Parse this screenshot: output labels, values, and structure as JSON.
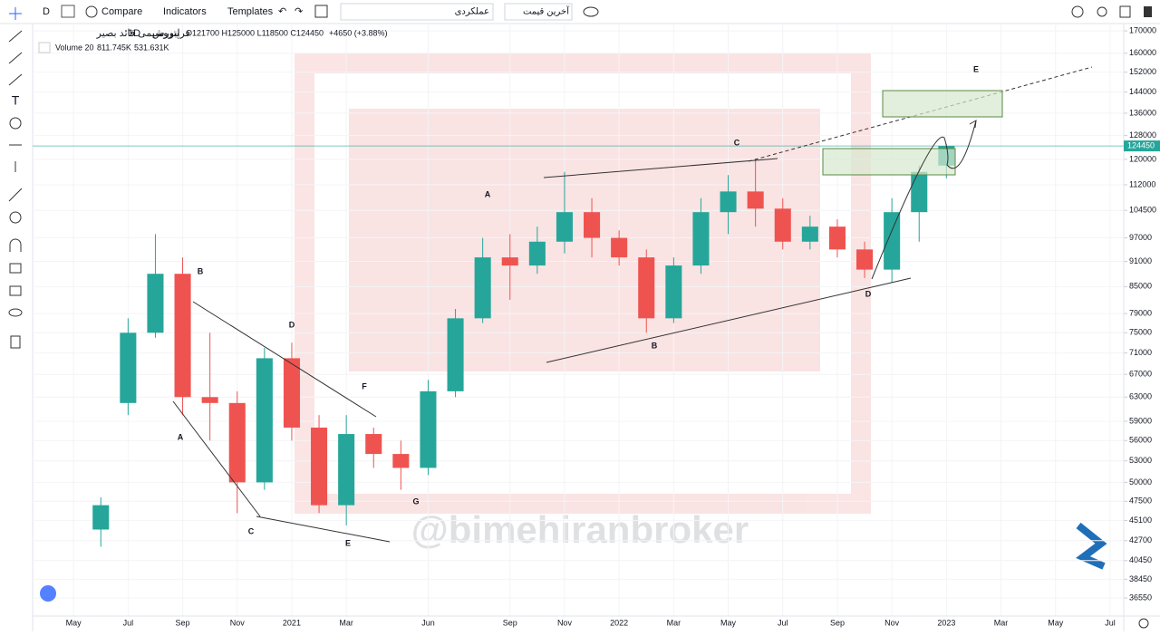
{
  "toolbar": {
    "interval": "D",
    "compare": "Compare",
    "indicators": "Indicators",
    "templates": "Templates",
    "search": "عملکردی",
    "price_type": "آخرین قیمت"
  },
  "legend": {
    "symbol": "پتروشیمی قائد بصیر",
    "interval": "1D",
    "exchange": "فرابورس",
    "ohlc": "O121700 H125000 L118500 C124450",
    "change": "+4650 (+3.88%)",
    "volume": "Volume 20",
    "volume_value": "811.745K",
    "volume_ma": "531.631K"
  },
  "watermark": "@bimehiranbroker",
  "chart_data": {
    "type": "candlestick",
    "log_scale": true,
    "up_color": "#26a69a",
    "down_color": "#ef5350",
    "categories": [
      null,
      "May",
      null,
      "Jul",
      null,
      "Sep",
      null,
      "Nov",
      null,
      "2021",
      null,
      "Mar",
      null,
      null,
      "Jun",
      null,
      null,
      "Sep",
      null,
      "Nov",
      null,
      "2022",
      null,
      "Mar",
      null,
      "May",
      null,
      "Jul",
      null,
      "Sep",
      null,
      "Nov",
      null,
      "2023",
      null,
      "Mar",
      null,
      "May",
      null,
      "Jul"
    ],
    "open": [
      null,
      null,
      44000,
      62000,
      75000,
      88000,
      63000,
      62000,
      50000,
      70000,
      58000,
      47000,
      57000,
      54000,
      52000,
      64000,
      78000,
      92000,
      90000,
      96000,
      104000,
      97000,
      92000,
      78000,
      90000,
      104000,
      110000,
      105000,
      96000,
      100000,
      94000,
      89000,
      104000,
      118000,
      null,
      null,
      null,
      null,
      null,
      null
    ],
    "high": [
      null,
      null,
      48000,
      78000,
      98000,
      92000,
      75000,
      64000,
      72000,
      73000,
      60000,
      60000,
      58000,
      56000,
      66000,
      80000,
      97000,
      98000,
      100000,
      116000,
      108000,
      99000,
      94000,
      92000,
      108000,
      115000,
      120000,
      108000,
      103000,
      102000,
      96000,
      108000,
      118000,
      125000,
      null,
      null,
      null,
      null,
      null,
      null
    ],
    "low": [
      null,
      null,
      42000,
      60000,
      74000,
      60000,
      56000,
      46000,
      49000,
      56000,
      46000,
      44500,
      52000,
      49000,
      51000,
      63000,
      77000,
      82000,
      88000,
      93000,
      92000,
      90000,
      75000,
      77000,
      88000,
      98000,
      100000,
      94000,
      94000,
      92000,
      87000,
      86000,
      96000,
      114000,
      null,
      null,
      null,
      null,
      null,
      null
    ],
    "close": [
      null,
      null,
      47000,
      75000,
      88000,
      63000,
      62000,
      50000,
      70000,
      58000,
      47000,
      57000,
      54000,
      52000,
      64000,
      78000,
      92000,
      90000,
      96000,
      104000,
      97000,
      92000,
      78000,
      90000,
      104000,
      110000,
      105000,
      96000,
      100000,
      94000,
      89000,
      104000,
      116000,
      124450,
      null,
      null,
      null,
      null,
      null,
      null
    ],
    "ylim": [
      34800,
      173400
    ],
    "yticks": [
      36550,
      38450,
      40450,
      42700,
      45100,
      47500,
      50000,
      53000,
      56000,
      59000,
      63000,
      67000,
      71000,
      75000,
      79000,
      85000,
      91000,
      97000,
      104500,
      112000,
      120000,
      128000,
      136000,
      144000,
      152000,
      160000,
      170000
    ],
    "annotations": [
      "B",
      "D",
      "A",
      "F",
      "C",
      "E",
      "G",
      "A",
      "C",
      "B",
      "D",
      "E"
    ]
  }
}
